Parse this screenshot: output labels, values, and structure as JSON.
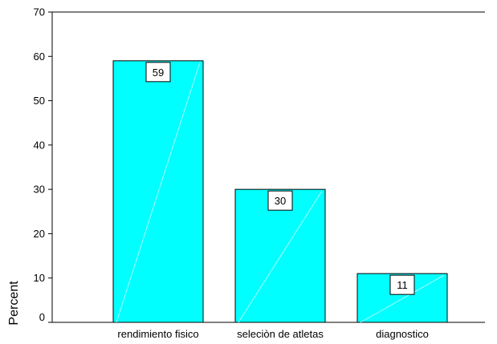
{
  "chart_data": {
    "type": "bar",
    "title": "",
    "xlabel": "",
    "ylabel": "Percent",
    "categories": [
      "rendimiento fisico",
      "seleciòn de atletas",
      "diagnostico"
    ],
    "values": [
      59,
      30,
      11
    ],
    "data_labels": [
      "59",
      "30",
      "11"
    ],
    "ylim": [
      0,
      70
    ],
    "yticks": [
      0,
      10,
      20,
      30,
      40,
      50,
      60,
      70
    ],
    "grid": false,
    "legend": "none",
    "bar_color": "#00FFFF",
    "bar_edge_color": "#000000"
  }
}
